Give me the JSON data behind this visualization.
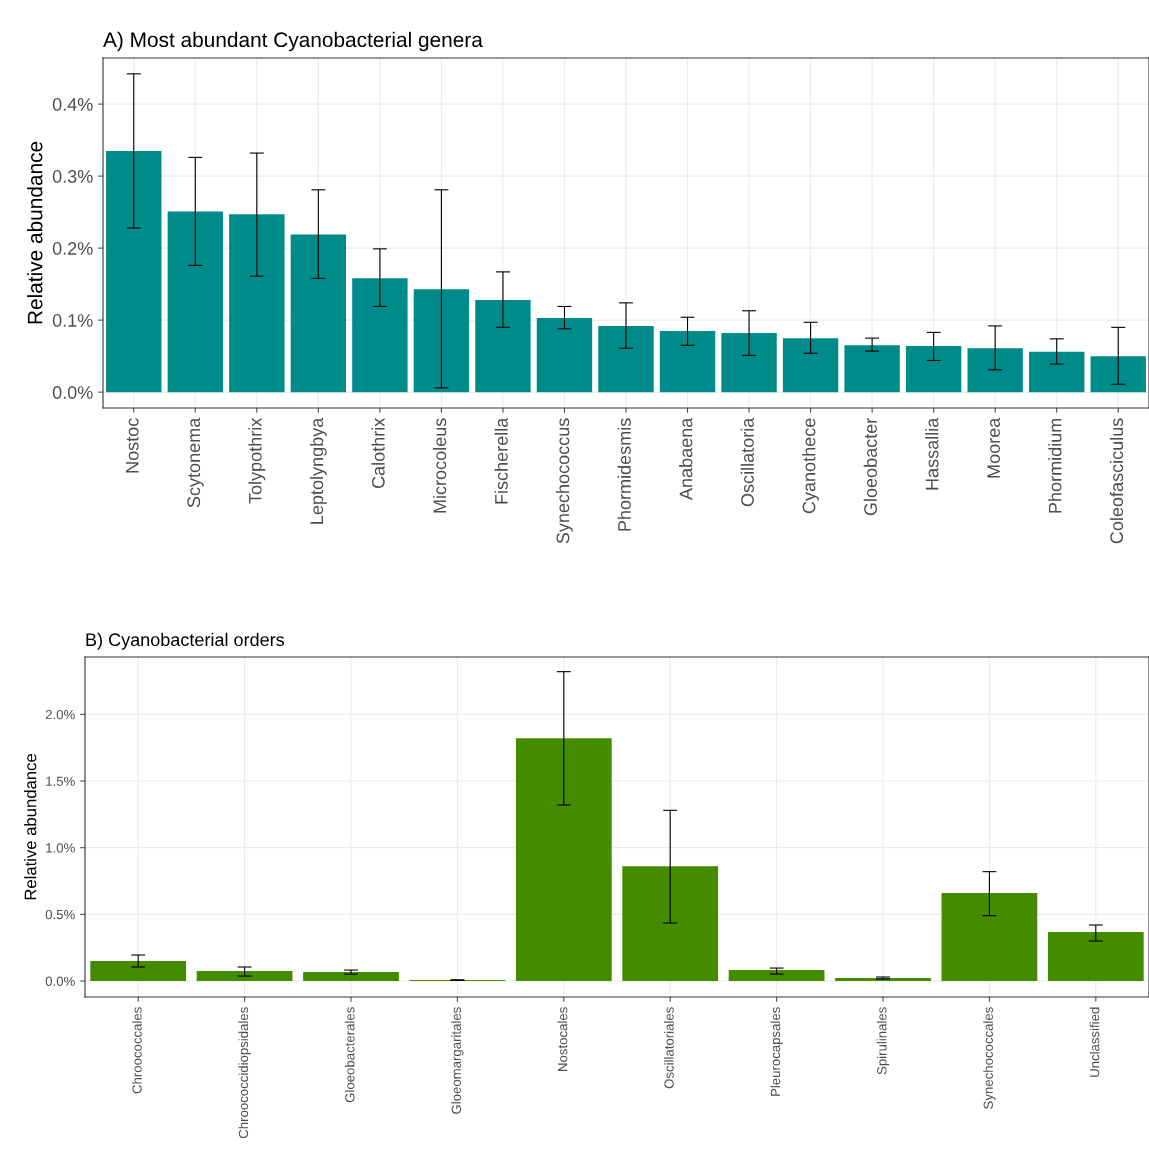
{
  "chart_data": [
    {
      "type": "bar",
      "title": "A) Most abundant Cyanobacterial genera",
      "ylabel": "Relative abundance",
      "color": "#008b8b",
      "categories": [
        "Nostoc",
        "Scytonema",
        "Tolypothrix",
        "Leptolyngbya",
        "Calothrix",
        "Microcoleus",
        "Fischerella",
        "Synechococcus",
        "Phormidesmis",
        "Anabaena",
        "Oscillatoria",
        "Cyanothece",
        "Gloeobacter",
        "Hassallia",
        "Moorea",
        "Phormidium",
        "Coleofasciculus"
      ],
      "values": [
        0.335,
        0.251,
        0.247,
        0.219,
        0.158,
        0.143,
        0.128,
        0.103,
        0.092,
        0.085,
        0.082,
        0.075,
        0.065,
        0.064,
        0.061,
        0.056,
        0.05
      ],
      "errors": [
        [
          0.228,
          0.442
        ],
        [
          0.176,
          0.326
        ],
        [
          0.161,
          0.332
        ],
        [
          0.158,
          0.281
        ],
        [
          0.119,
          0.199
        ],
        [
          0.006,
          0.281
        ],
        [
          0.09,
          0.167
        ],
        [
          0.088,
          0.119
        ],
        [
          0.061,
          0.124
        ],
        [
          0.065,
          0.104
        ],
        [
          0.051,
          0.113
        ],
        [
          0.054,
          0.097
        ],
        [
          0.057,
          0.075
        ],
        [
          0.044,
          0.083
        ],
        [
          0.031,
          0.092
        ],
        [
          0.039,
          0.074
        ],
        [
          0.011,
          0.09
        ]
      ],
      "ylim": [
        -0.022,
        0.464
      ],
      "yticks": [
        {
          "value": 0.0,
          "label": "0.0%"
        },
        {
          "value": 0.1,
          "label": "0.1%"
        },
        {
          "value": 0.2,
          "label": "0.2%"
        },
        {
          "value": 0.3,
          "label": "0.3%"
        },
        {
          "value": 0.4,
          "label": "0.4%"
        }
      ],
      "grid": true
    },
    {
      "type": "bar",
      "title": "B) Cyanobacterial orders",
      "ylabel": "Relative abundance",
      "color": "#458b00",
      "categories": [
        "Chroococcales",
        "Chroococcidiopsidales",
        "Gloeobacterales",
        "Gloeomargaritales",
        "Nostocales",
        "Oscillatoriales",
        "Pleurocapsales",
        "Spirulinales",
        "Synechococcales",
        "Unclassified"
      ],
      "values": [
        0.15,
        0.075,
        0.067,
        0.007,
        1.82,
        0.86,
        0.082,
        0.022,
        0.66,
        0.367
      ],
      "errors": [
        [
          0.105,
          0.195
        ],
        [
          0.037,
          0.105
        ],
        [
          0.052,
          0.082
        ],
        [
          0.005,
          0.009
        ],
        [
          1.32,
          2.32
        ],
        [
          0.435,
          1.28
        ],
        [
          0.052,
          0.097
        ],
        [
          0.015,
          0.03
        ],
        [
          0.49,
          0.82
        ],
        [
          0.3,
          0.42
        ]
      ],
      "ylim": [
        -0.12,
        2.43
      ],
      "yticks": [
        {
          "value": 0.0,
          "label": "0.0%"
        },
        {
          "value": 0.5,
          "label": "0.5%"
        },
        {
          "value": 1.0,
          "label": "1.0%"
        },
        {
          "value": 1.5,
          "label": "1.5%"
        },
        {
          "value": 2.0,
          "label": "2.0%"
        }
      ],
      "grid": true
    }
  ]
}
